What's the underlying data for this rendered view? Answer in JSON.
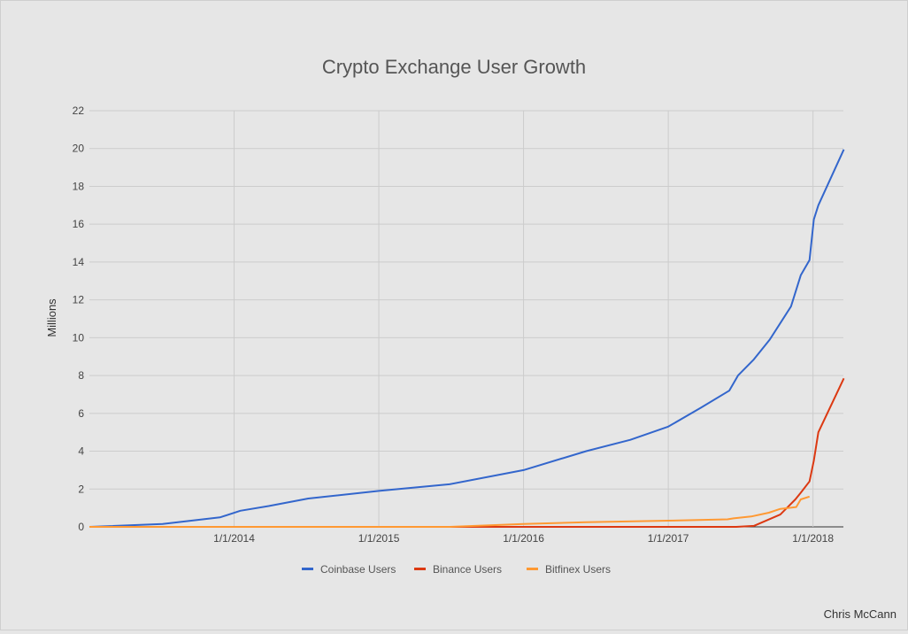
{
  "chart_data": {
    "type": "line",
    "title": "Crypto Exchange User Growth",
    "xlabel": "",
    "ylabel": "Millions",
    "xlim": [
      2013.0,
      2018.21
    ],
    "ylim": [
      0,
      22
    ],
    "yticks": [
      0,
      2,
      4,
      6,
      8,
      10,
      12,
      14,
      16,
      18,
      20,
      22
    ],
    "xticks": [
      {
        "value": 2014,
        "label": "1/1/2014"
      },
      {
        "value": 2015,
        "label": "1/1/2015"
      },
      {
        "value": 2016,
        "label": "1/1/2016"
      },
      {
        "value": 2017,
        "label": "1/1/2017"
      },
      {
        "value": 2018,
        "label": "1/1/2018"
      }
    ],
    "grid": true,
    "legend": "bottom",
    "series": [
      {
        "name": "Coinbase Users",
        "color": "#3366cc",
        "x": [
          2013.0,
          2013.506,
          2013.902,
          2014.043,
          2014.238,
          2014.512,
          2015.0,
          2015.488,
          2016.0,
          2016.433,
          2016.738,
          2017.0,
          2017.226,
          2017.421,
          2017.482,
          2017.591,
          2017.701,
          2017.848,
          2017.915,
          2017.976,
          2018.006,
          2018.037,
          2018.213
        ],
        "y": [
          0,
          0.15,
          0.5,
          0.85,
          1.1,
          1.5,
          1.9,
          2.25,
          3.0,
          4.0,
          4.6,
          5.3,
          6.3,
          7.2,
          8.0,
          8.85,
          9.9,
          11.65,
          13.3,
          14.1,
          16.25,
          17.0,
          19.95
        ]
      },
      {
        "name": "Binance Users",
        "color": "#dc3912",
        "x": [
          2013.0,
          2017.47,
          2017.591,
          2017.774,
          2017.878,
          2017.915,
          2017.976,
          2018.006,
          2018.037,
          2018.213
        ],
        "y": [
          0,
          0,
          0.05,
          0.65,
          1.45,
          1.8,
          2.4,
          3.5,
          5.0,
          7.85
        ]
      },
      {
        "name": "Bitfinex Users",
        "color": "#ff9933",
        "x": [
          2013.0,
          2015.49,
          2016.0,
          2016.433,
          2017.0,
          2017.409,
          2017.451,
          2017.573,
          2017.695,
          2017.774,
          2017.884,
          2017.915,
          2017.976
        ],
        "y": [
          0,
          0,
          0.15,
          0.25,
          0.33,
          0.4,
          0.45,
          0.55,
          0.75,
          0.95,
          1.05,
          1.45,
          1.6
        ]
      }
    ]
  },
  "credit": "Chris McCann"
}
